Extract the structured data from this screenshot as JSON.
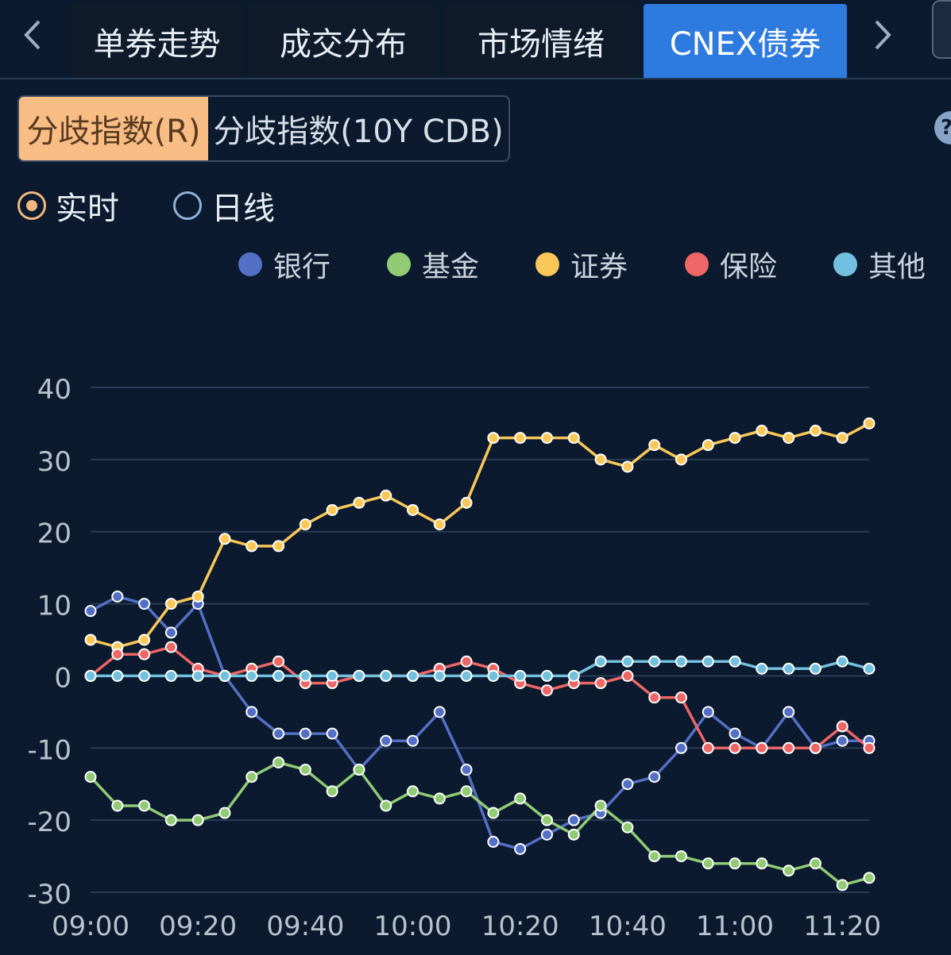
{
  "tabs": {
    "prev_icon": "chevron-left-icon",
    "next_icon": "chevron-right-icon",
    "items": [
      {
        "label": "单券走势",
        "active": false
      },
      {
        "label": "成交分布",
        "active": false
      },
      {
        "label": "市场情绪",
        "active": false
      },
      {
        "label": "CNEX债券",
        "active": true
      }
    ]
  },
  "segment": {
    "options": [
      {
        "label": "分歧指数(R)",
        "selected": true
      },
      {
        "label": "分歧指数(10Y CDB)",
        "selected": false
      }
    ]
  },
  "help_icon": "question-icon",
  "radio": {
    "realtime": {
      "label": "实时",
      "checked": true
    },
    "daily": {
      "label": "日线",
      "checked": false
    }
  },
  "colors": {
    "accent": "#2e7be0",
    "segment_selected": "#f7bd85",
    "radio_checked": "#f2b77e",
    "background": "#0b1a2e"
  },
  "chart_data": {
    "type": "line",
    "title": "",
    "xlabel": "",
    "ylabel": "",
    "legend_position": "top-right",
    "grid": true,
    "ylim": [
      -30,
      40
    ],
    "yticks": [
      40,
      30,
      20,
      10,
      0,
      -10,
      -20,
      -30
    ],
    "xticks": [
      "09:00",
      "09:20",
      "09:40",
      "10:00",
      "10:20",
      "10:40",
      "11:00",
      "11:20"
    ],
    "x": [
      "09:00",
      "09:05",
      "09:10",
      "09:15",
      "09:20",
      "09:25",
      "09:30",
      "09:35",
      "09:40",
      "09:45",
      "09:50",
      "09:55",
      "10:00",
      "10:05",
      "10:10",
      "10:15",
      "10:20",
      "10:25",
      "10:30",
      "10:35",
      "10:40",
      "10:45",
      "10:50",
      "10:55",
      "11:00",
      "11:05",
      "11:10",
      "11:15",
      "11:20",
      "11:25"
    ],
    "series": [
      {
        "name": "银行",
        "color": "#5470c6",
        "values": [
          9,
          11,
          10,
          6,
          10,
          0,
          -5,
          -8,
          -8,
          -8,
          -13,
          -9,
          -9,
          -5,
          -13,
          -23,
          -24,
          -22,
          -20,
          -19,
          -15,
          -14,
          -10,
          -5,
          -8,
          -10,
          -5,
          -10,
          -9,
          -9
        ]
      },
      {
        "name": "基金",
        "color": "#91cc75",
        "values": [
          -14,
          -18,
          -18,
          -20,
          -20,
          -19,
          -14,
          -12,
          -13,
          -16,
          -13,
          -18,
          -16,
          -17,
          -16,
          -19,
          -17,
          -20,
          -22,
          -18,
          -21,
          -25,
          -25,
          -26,
          -26,
          -26,
          -27,
          -26,
          -29,
          -28
        ]
      },
      {
        "name": "证券",
        "color": "#fac858",
        "values": [
          5,
          4,
          5,
          10,
          11,
          19,
          18,
          18,
          21,
          23,
          24,
          25,
          23,
          21,
          24,
          33,
          33,
          33,
          33,
          30,
          29,
          32,
          30,
          32,
          33,
          34,
          33,
          34,
          33,
          35
        ]
      },
      {
        "name": "保险",
        "color": "#ee6666",
        "values": [
          0,
          3,
          3,
          4,
          1,
          0,
          1,
          2,
          -1,
          -1,
          0,
          0,
          0,
          1,
          2,
          1,
          -1,
          -2,
          -1,
          -1,
          0,
          -3,
          -3,
          -10,
          -10,
          -10,
          -10,
          -10,
          -7,
          -10
        ]
      },
      {
        "name": "其他",
        "color": "#73c0de",
        "values": [
          0,
          0,
          0,
          0,
          0,
          0,
          0,
          0,
          0,
          0,
          0,
          0,
          0,
          0,
          0,
          0,
          0,
          0,
          0,
          2,
          2,
          2,
          2,
          2,
          2,
          1,
          1,
          1,
          2,
          1
        ]
      }
    ]
  }
}
